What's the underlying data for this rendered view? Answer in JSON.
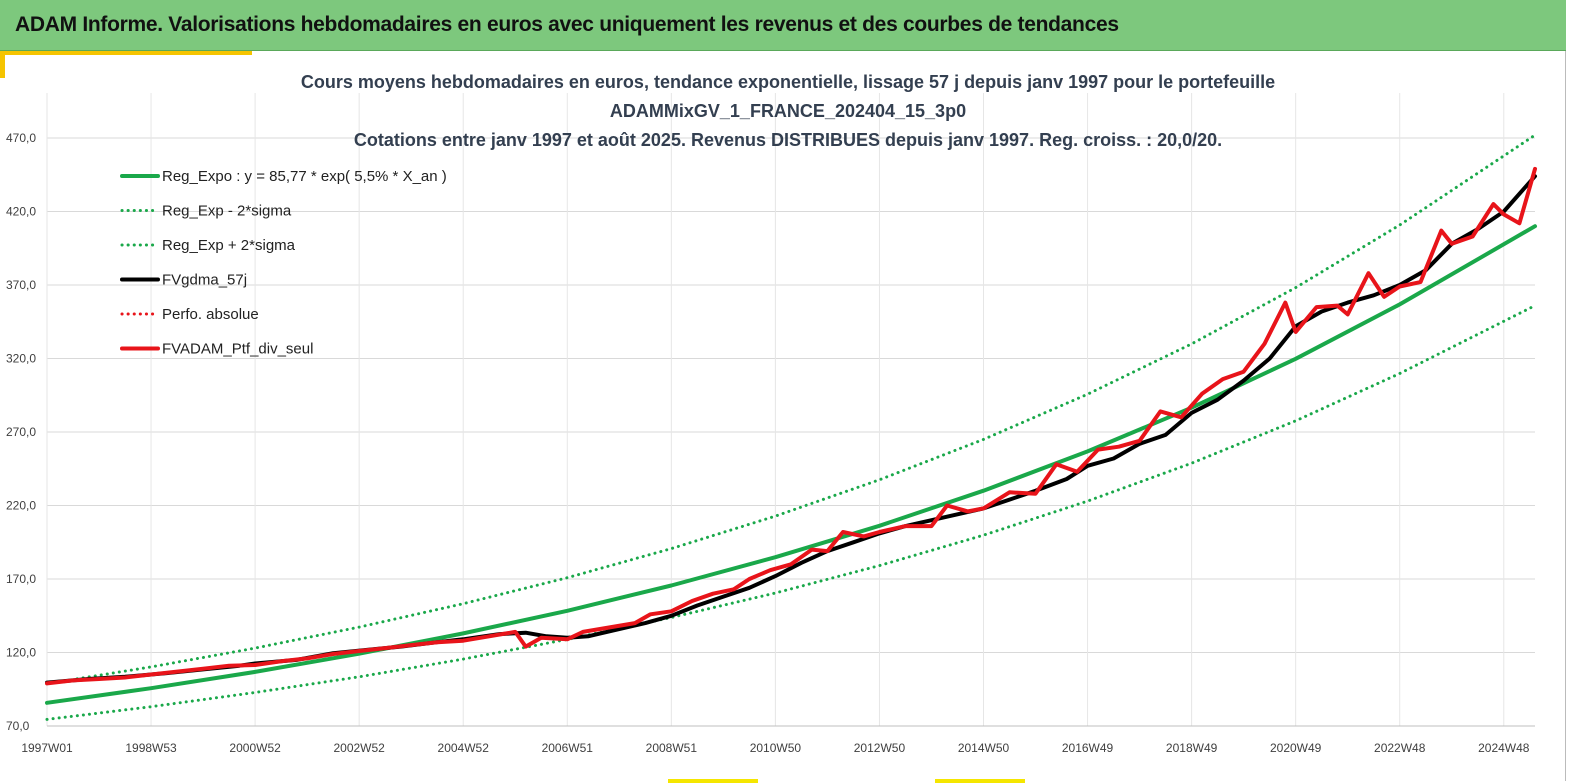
{
  "header": {
    "title": "ADAM Informe. Valorisations hebdomadaires en euros avec uniquement les revenus et des courbes de tendances"
  },
  "colors": {
    "header_bg": "#7dc87d",
    "accent": "#f5c400",
    "trend": "#1aa84a",
    "smooth": "#000000",
    "portfolio": "#e8141a"
  },
  "chart_data": {
    "type": "line",
    "title_lines": [
      "Cours moyens hebdomadaires  en euros, tendance exponentielle, lissage 57 j depuis janv 1997 pour le portefeuille",
      "ADAMMixGV_1_FRANCE_202404_15_3p0",
      "Cotations  entre janv 1997 et août 2025. Revenus DISTRIBUES depuis janv 1997. Reg. croiss. : 20,0/20."
    ],
    "ylim": [
      70,
      470
    ],
    "y_ticks": [
      "70,0",
      "120,0",
      "170,0",
      "220,0",
      "270,0",
      "320,0",
      "370,0",
      "420,0",
      "470,0"
    ],
    "x_range": [
      1997.0,
      2025.6
    ],
    "x_ticks": [
      {
        "label": "1997W01",
        "x": 1997.0
      },
      {
        "label": "1998W53",
        "x": 1999.0
      },
      {
        "label": "2000W52",
        "x": 2001.0
      },
      {
        "label": "2002W52",
        "x": 2003.0
      },
      {
        "label": "2004W52",
        "x": 2005.0
      },
      {
        "label": "2006W51",
        "x": 2007.0
      },
      {
        "label": "2008W51",
        "x": 2009.0
      },
      {
        "label": "2010W50",
        "x": 2011.0
      },
      {
        "label": "2012W50",
        "x": 2013.0
      },
      {
        "label": "2014W50",
        "x": 2015.0
      },
      {
        "label": "2016W49",
        "x": 2017.0
      },
      {
        "label": "2018W49",
        "x": 2019.0
      },
      {
        "label": "2020W49",
        "x": 2021.0
      },
      {
        "label": "2022W48",
        "x": 2023.0
      },
      {
        "label": "2024W48",
        "x": 2025.0
      }
    ],
    "grid": true,
    "legend_position": "top-left",
    "legend": [
      {
        "label": "Reg_Expo : y = 85,77 * exp( 5,5% *  X_an )",
        "color": "#1aa84a",
        "style": "solid",
        "width": 4
      },
      {
        "label": "Reg_Exp - 2*sigma",
        "color": "#1aa84a",
        "style": "dotted",
        "width": 3
      },
      {
        "label": "Reg_Exp + 2*sigma",
        "color": "#1aa84a",
        "style": "dotted",
        "width": 3
      },
      {
        "label": "FVgdma_57j",
        "color": "#000000",
        "style": "solid",
        "width": 4
      },
      {
        "label": "Perfo. absolue",
        "color": "#e8141a",
        "style": "dotted",
        "width": 3
      },
      {
        "label": "FVADAM_Ptf_div_seul",
        "color": "#e8141a",
        "style": "solid",
        "width": 4
      }
    ],
    "series": [
      {
        "name": "Reg_Expo : y = 85,77 * exp( 5,5% *  X_an )",
        "x": [
          1997.0,
          1999.0,
          2001.0,
          2003.0,
          2005.0,
          2007.0,
          2009.0,
          2011.0,
          2013.0,
          2015.0,
          2017.0,
          2019.0,
          2021.0,
          2023.0,
          2025.6
        ],
        "values": [
          85.8,
          95.7,
          106.8,
          119.2,
          133.0,
          148.4,
          165.6,
          184.8,
          206.2,
          230.1,
          256.8,
          286.5,
          319.8,
          356.8,
          410.0
        ]
      },
      {
        "name": "Reg_Exp - 2*sigma",
        "x": [
          1997.0,
          1999.0,
          2001.0,
          2003.0,
          2005.0,
          2007.0,
          2009.0,
          2011.0,
          2013.0,
          2015.0,
          2017.0,
          2019.0,
          2021.0,
          2023.0,
          2025.6
        ],
        "values": [
          74.5,
          83.1,
          92.8,
          103.5,
          115.5,
          128.9,
          143.8,
          160.5,
          179.1,
          199.8,
          223.0,
          248.8,
          277.6,
          309.8,
          356.0
        ]
      },
      {
        "name": "Reg_Exp + 2*sigma",
        "x": [
          1997.0,
          1999.0,
          2001.0,
          2003.0,
          2005.0,
          2007.0,
          2009.0,
          2011.0,
          2013.0,
          2015.0,
          2017.0,
          2019.0,
          2021.0,
          2023.0,
          2025.6
        ],
        "values": [
          98.8,
          110.2,
          123.0,
          137.3,
          153.2,
          170.9,
          190.7,
          212.8,
          237.5,
          265.0,
          295.7,
          329.9,
          368.2,
          410.8,
          472.0
        ]
      },
      {
        "name": "FVgdma_57j",
        "x": [
          1997.0,
          1997.8,
          1998.5,
          1999.3,
          2000.0,
          2000.7,
          2001.0,
          2001.8,
          2002.5,
          2003.2,
          2003.8,
          2004.5,
          2005.0,
          2005.7,
          2006.2,
          2006.6,
          2007.0,
          2007.4,
          2008.0,
          2008.5,
          2009.0,
          2009.5,
          2010.0,
          2010.5,
          2011.0,
          2011.5,
          2012.0,
          2012.5,
          2013.0,
          2013.5,
          2014.0,
          2014.5,
          2015.0,
          2015.5,
          2016.0,
          2016.6,
          2017.0,
          2017.5,
          2018.0,
          2018.5,
          2019.0,
          2019.5,
          2020.0,
          2020.5,
          2021.0,
          2021.5,
          2022.0,
          2022.5,
          2023.0,
          2023.5,
          2024.0,
          2024.5,
          2025.0,
          2025.6
        ],
        "values": [
          99.5,
          102.0,
          103.5,
          106.0,
          108.5,
          111.0,
          112.5,
          115.0,
          119.5,
          122.0,
          124.0,
          127.0,
          129.0,
          132.5,
          133.5,
          131.0,
          130.0,
          131.0,
          136.0,
          140.0,
          145.0,
          152.0,
          158.0,
          164.0,
          172.0,
          181.0,
          189.0,
          195.0,
          201.0,
          206.0,
          210.0,
          214.0,
          218.0,
          224.0,
          230.0,
          238.0,
          247.0,
          252.0,
          262.0,
          268.0,
          283.0,
          292.0,
          305.0,
          320.0,
          342.0,
          352.0,
          358.0,
          363.0,
          370.0,
          380.0,
          398.0,
          408.0,
          420.0,
          444.0
        ]
      },
      {
        "name": "FVADAM_Ptf_div_seul",
        "x": [
          1997.0,
          1997.5,
          1998.0,
          1998.5,
          1999.0,
          1999.5,
          2000.0,
          2000.5,
          2001.0,
          2001.5,
          2002.0,
          2002.5,
          2003.0,
          2003.5,
          2004.0,
          2004.5,
          2005.0,
          2005.5,
          2006.0,
          2006.2,
          2006.5,
          2007.0,
          2007.3,
          2007.8,
          2008.3,
          2008.6,
          2009.0,
          2009.4,
          2009.8,
          2010.2,
          2010.5,
          2010.9,
          2011.3,
          2011.7,
          2012.0,
          2012.3,
          2012.7,
          2013.0,
          2013.5,
          2014.0,
          2014.3,
          2014.7,
          2015.0,
          2015.5,
          2016.0,
          2016.4,
          2016.8,
          2017.2,
          2017.6,
          2018.0,
          2018.4,
          2018.8,
          2019.2,
          2019.6,
          2020.0,
          2020.4,
          2020.8,
          2021.0,
          2021.4,
          2021.8,
          2022.0,
          2022.4,
          2022.7,
          2023.0,
          2023.4,
          2023.8,
          2024.0,
          2024.4,
          2024.8,
          2025.0,
          2025.3,
          2025.6
        ],
        "values": [
          99.0,
          101.0,
          102.0,
          103.0,
          105.0,
          107.0,
          109.0,
          111.0,
          111.5,
          114.0,
          116.0,
          119.0,
          121.0,
          123.0,
          125.0,
          127.0,
          128.0,
          131.0,
          134.0,
          124.0,
          130.0,
          129.0,
          134.0,
          137.0,
          140.0,
          146.0,
          148.0,
          155.0,
          160.0,
          163.0,
          170.0,
          176.0,
          180.0,
          190.0,
          189.0,
          202.0,
          199.0,
          202.0,
          206.0,
          206.0,
          220.0,
          216.0,
          218.0,
          229.0,
          228.0,
          248.0,
          243.0,
          258.0,
          260.0,
          264.0,
          284.0,
          280.0,
          296.0,
          306.0,
          311.0,
          330.0,
          358.0,
          338.0,
          355.0,
          356.0,
          350.0,
          378.0,
          362.0,
          369.0,
          372.0,
          407.0,
          398.0,
          403.0,
          425.0,
          418.0,
          412.0,
          449.0
        ]
      }
    ]
  }
}
